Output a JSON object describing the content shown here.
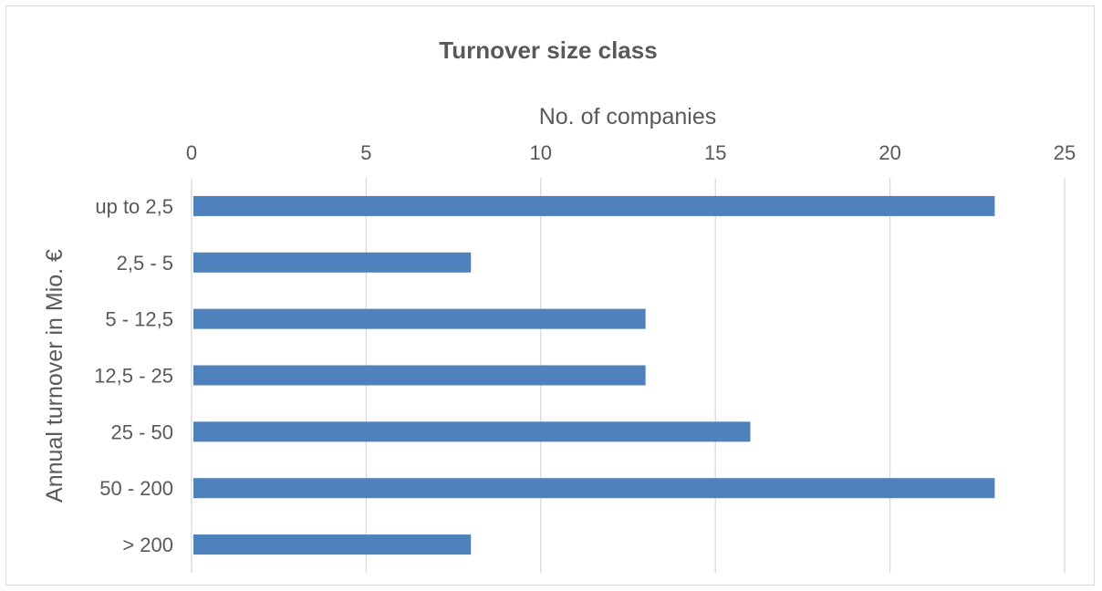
{
  "chart_data": {
    "type": "bar",
    "orientation": "horizontal",
    "title": "Turnover size class",
    "xlabel": "No. of companies",
    "ylabel": "Annual turnover in Mio. €",
    "x_axis_position": "top",
    "xlim": [
      0,
      25
    ],
    "xticks": [
      "0",
      "5",
      "10",
      "15",
      "20",
      "25"
    ],
    "grid": true,
    "legend": "none",
    "categories": [
      "up to 2,5",
      "2,5 - 5",
      "5 - 12,5",
      "12,5 - 25",
      "25 - 50",
      "50 - 200",
      "> 200"
    ],
    "values": [
      23,
      8,
      13,
      13,
      16,
      23,
      8
    ],
    "bar_color": "#4f81bd"
  }
}
